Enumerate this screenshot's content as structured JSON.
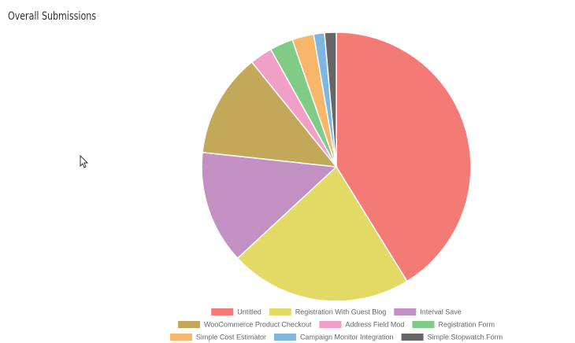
{
  "chart_data": {
    "type": "pie",
    "title": "Overall Submissions",
    "categories": [
      "Untitled",
      "Registration With Guest Blog",
      "Interval Save",
      "WooCommerce Product Checkout",
      "Address Field Mod",
      "Registration Form",
      "Simple Cost Estimator",
      "Campaign Monitor Integration",
      "Simple Stopwatch Form"
    ],
    "values": [
      41.2,
      21.9,
      13.6,
      12.5,
      2.7,
      2.8,
      2.6,
      1.3,
      1.4
    ],
    "colors": [
      "#f47a75",
      "#e3d965",
      "#c390c4",
      "#c3a85a",
      "#f29fc8",
      "#80cc86",
      "#f7b669",
      "#7fb6e0",
      "#666666"
    ],
    "legend": "bottom"
  }
}
